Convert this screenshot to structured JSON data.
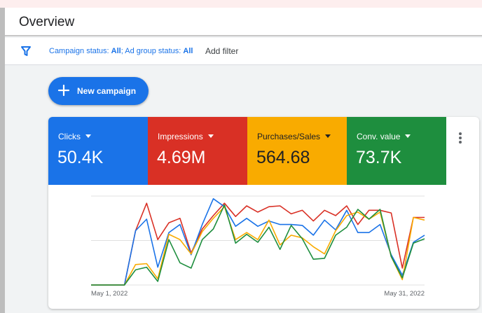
{
  "header": {
    "title": "Overview"
  },
  "filters": {
    "campaign_label": "Campaign status: ",
    "campaign_value": "All",
    "separator": "; ",
    "adgroup_label": "Ad group status: ",
    "adgroup_value": "All",
    "add_filter": "Add filter"
  },
  "actions": {
    "new_campaign": "New campaign"
  },
  "colors": {
    "clicks": "#1a73e8",
    "impressions": "#d93025",
    "purchases": "#f9ab00",
    "conv_value": "#1e8e3e"
  },
  "metrics": [
    {
      "name": "Clicks",
      "value": "50.4K"
    },
    {
      "name": "Impressions",
      "value": "4.69M"
    },
    {
      "name": "Purchases/Sales",
      "value": "564.68"
    },
    {
      "name": "Conv. value",
      "value": "73.7K"
    }
  ],
  "chart_data": {
    "type": "line",
    "x_tick_labels": [
      "May 1, 2022",
      "May 31, 2022"
    ],
    "y_range": [
      0,
      1
    ],
    "grid": true,
    "series": [
      {
        "name": "Impressions",
        "color": "#d93025",
        "values": [
          0.0,
          0.0,
          0.0,
          0.0,
          0.61,
          0.92,
          0.51,
          0.7,
          0.75,
          0.36,
          0.63,
          0.78,
          0.92,
          0.77,
          0.89,
          0.82,
          0.88,
          0.89,
          0.8,
          0.84,
          0.72,
          0.84,
          0.78,
          0.89,
          0.68,
          0.84,
          0.84,
          0.81,
          0.19,
          0.76,
          0.76
        ]
      },
      {
        "name": "Clicks",
        "color": "#1a73e8",
        "values": [
          0.0,
          0.0,
          0.0,
          0.0,
          0.61,
          0.74,
          0.2,
          0.59,
          0.68,
          0.34,
          0.68,
          0.97,
          0.88,
          0.66,
          0.75,
          0.66,
          0.72,
          0.68,
          0.68,
          0.67,
          0.56,
          0.73,
          0.62,
          0.84,
          0.59,
          0.59,
          0.68,
          0.34,
          0.11,
          0.48,
          0.56
        ]
      },
      {
        "name": "Purchases/Sales",
        "color": "#f9ab00",
        "values": [
          0.0,
          0.0,
          0.0,
          0.0,
          0.23,
          0.24,
          0.07,
          0.57,
          0.51,
          0.35,
          0.6,
          0.75,
          0.88,
          0.51,
          0.59,
          0.51,
          0.73,
          0.45,
          0.56,
          0.53,
          0.43,
          0.35,
          0.61,
          0.78,
          0.82,
          0.74,
          0.82,
          0.32,
          0.06,
          0.76,
          0.73
        ]
      },
      {
        "name": "Conv. value",
        "color": "#1e8e3e",
        "values": [
          0.0,
          0.0,
          0.0,
          0.0,
          0.17,
          0.2,
          0.04,
          0.51,
          0.25,
          0.19,
          0.51,
          0.63,
          0.9,
          0.47,
          0.57,
          0.48,
          0.65,
          0.4,
          0.67,
          0.52,
          0.29,
          0.3,
          0.56,
          0.65,
          0.85,
          0.74,
          0.85,
          0.32,
          0.08,
          0.47,
          0.52
        ]
      }
    ]
  }
}
